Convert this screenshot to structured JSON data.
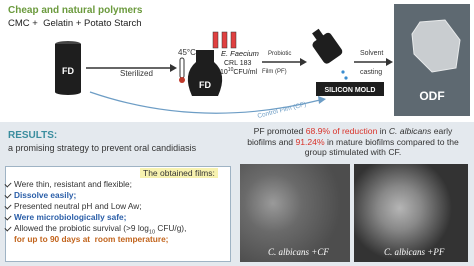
{
  "header": {
    "title": "Cheap and natural polymers",
    "ingredients": "CMC +  Gelatin + Potato Starch"
  },
  "process": {
    "fd_first": "FD",
    "sterilized": "Sterilized",
    "temperature": "45°C",
    "strain": "E. Faecium",
    "strain_code": "CRL 183",
    "concentration_base": "10",
    "concentration_exp": "10",
    "concentration_unit": "CFU/ml",
    "fd_second": "FD",
    "probiotic_film": [
      "Probiotic",
      "Film (PF)"
    ],
    "mold": "SILICON MOLD",
    "solvent_casting": [
      "Solvent",
      "casting"
    ],
    "control_film": "Control Film (CF)",
    "product": "ODF"
  },
  "results": {
    "heading": "RESULTS:",
    "subtitle": "a promising strategy to prevent oral candidiasis",
    "films_heading": "The obtained films:",
    "items": [
      [
        "Were thin, resistant and flexible;"
      ],
      [
        "Dissolve easily;"
      ],
      [
        "Presented neutral pH and Low Aw;"
      ],
      [
        "Were microbiologically safe;"
      ],
      [
        "Allowed the probiotic survival (>9 log",
        "10",
        " CFU/g),"
      ],
      [
        "for up to 90 days at  room temperature;"
      ]
    ],
    "summary": [
      "PF promoted ",
      "68.9% of reduction",
      " in ",
      "C. albicans",
      " early biofilms and ",
      "91.24%",
      " in mature biofilms compared to the group stimulated with CF."
    ],
    "images": [
      {
        "organism": "C. albicans",
        "label": " +CF"
      },
      {
        "organism": "C. albicans",
        "label": " +PF"
      }
    ]
  }
}
